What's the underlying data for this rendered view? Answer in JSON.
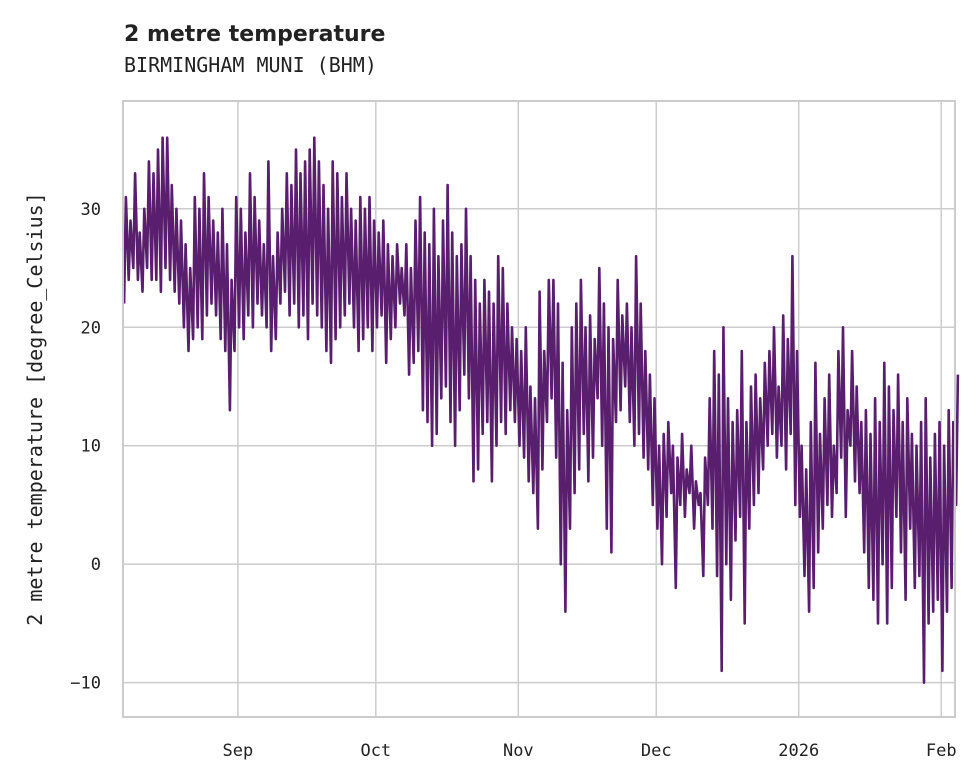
{
  "chart_data": {
    "type": "line",
    "title": "2 metre temperature",
    "subtitle": "BIRMINGHAM MUNI (BHM)",
    "xlabel": "",
    "ylabel": "2 metre temperature [degree_Celsius]",
    "ylim": [
      -12.9,
      39.1
    ],
    "xlim": [
      "2025-08-07",
      "2026-02-04"
    ],
    "grid": true,
    "line_color": "#5a1e6e",
    "yticks": [
      -10,
      0,
      10,
      20,
      30
    ],
    "xticks": [
      {
        "label": "Sep",
        "date": "2025-09-01"
      },
      {
        "label": "Oct",
        "date": "2025-10-01"
      },
      {
        "label": "Nov",
        "date": "2025-11-01"
      },
      {
        "label": "Dec",
        "date": "2025-12-01"
      },
      {
        "label": "2026",
        "date": "2026-01-01"
      },
      {
        "label": "Feb",
        "date": "2026-02-01"
      }
    ],
    "series_start": "2025-08-07",
    "series_note_fields": [
      "daily_max",
      "daily_min"
    ],
    "daily_hi_lo": [
      [
        31,
        22
      ],
      [
        29,
        24
      ],
      [
        33,
        25
      ],
      [
        28,
        24
      ],
      [
        30,
        23
      ],
      [
        34,
        25
      ],
      [
        33,
        24
      ],
      [
        35,
        24
      ],
      [
        36,
        23
      ],
      [
        36,
        25
      ],
      [
        32,
        24
      ],
      [
        30,
        23
      ],
      [
        29,
        22
      ],
      [
        27,
        20
      ],
      [
        25,
        18
      ],
      [
        31,
        19
      ],
      [
        30,
        20
      ],
      [
        33,
        19
      ],
      [
        31,
        21
      ],
      [
        29,
        22
      ],
      [
        28,
        21
      ],
      [
        30,
        19
      ],
      [
        27,
        18
      ],
      [
        24,
        13
      ],
      [
        31,
        18
      ],
      [
        30,
        20
      ],
      [
        28,
        19
      ],
      [
        33,
        21
      ],
      [
        31,
        20
      ],
      [
        29,
        22
      ],
      [
        27,
        21
      ],
      [
        34,
        20
      ],
      [
        26,
        18
      ],
      [
        28,
        19
      ],
      [
        30,
        22
      ],
      [
        33,
        23
      ],
      [
        32,
        21
      ],
      [
        35,
        22
      ],
      [
        33,
        20
      ],
      [
        34,
        21
      ],
      [
        35,
        19
      ],
      [
        36,
        22
      ],
      [
        34,
        21
      ],
      [
        32,
        20
      ],
      [
        30,
        18
      ],
      [
        34,
        17
      ],
      [
        33,
        19
      ],
      [
        31,
        20
      ],
      [
        33,
        21
      ],
      [
        30,
        22
      ],
      [
        29,
        20
      ],
      [
        31,
        18
      ],
      [
        30,
        19
      ],
      [
        31,
        20
      ],
      [
        29,
        18
      ],
      [
        28,
        20
      ],
      [
        29,
        21
      ],
      [
        27,
        17
      ],
      [
        26,
        19
      ],
      [
        27,
        20
      ],
      [
        25,
        22
      ],
      [
        27,
        21
      ],
      [
        25,
        16
      ],
      [
        29,
        17
      ],
      [
        31,
        18
      ],
      [
        28,
        13
      ],
      [
        27,
        12
      ],
      [
        30,
        10
      ],
      [
        26,
        11
      ],
      [
        29,
        14
      ],
      [
        32,
        15
      ],
      [
        28,
        12
      ],
      [
        26,
        10
      ],
      [
        27,
        13
      ],
      [
        30,
        16
      ],
      [
        26,
        14
      ],
      [
        24,
        7
      ],
      [
        22,
        8
      ],
      [
        24,
        11
      ],
      [
        23,
        12
      ],
      [
        22,
        7
      ],
      [
        26,
        10
      ],
      [
        25,
        12
      ],
      [
        22,
        11
      ],
      [
        20,
        13
      ],
      [
        19,
        12
      ],
      [
        18,
        10
      ],
      [
        20,
        9
      ],
      [
        15,
        7
      ],
      [
        14,
        6
      ],
      [
        23,
        3
      ],
      [
        18,
        8
      ],
      [
        24,
        12
      ],
      [
        24,
        14
      ],
      [
        22,
        9
      ],
      [
        17,
        0
      ],
      [
        13,
        -4
      ],
      [
        20,
        3
      ],
      [
        22,
        6
      ],
      [
        24,
        8
      ],
      [
        20,
        11
      ],
      [
        21,
        7
      ],
      [
        19,
        9
      ],
      [
        25,
        14
      ],
      [
        22,
        10
      ],
      [
        20,
        3
      ],
      [
        19,
        1
      ],
      [
        24,
        12
      ],
      [
        21,
        13
      ],
      [
        22,
        15
      ],
      [
        20,
        12
      ],
      [
        26,
        10
      ],
      [
        22,
        11
      ],
      [
        18,
        9
      ],
      [
        16,
        8
      ],
      [
        14,
        5
      ],
      [
        10,
        3
      ],
      [
        11,
        0
      ],
      [
        12,
        4
      ],
      [
        10,
        6
      ],
      [
        9,
        -2
      ],
      [
        11,
        5
      ],
      [
        8,
        4
      ],
      [
        10,
        6
      ],
      [
        7,
        3
      ],
      [
        6,
        5
      ],
      [
        9,
        -1
      ],
      [
        14,
        5
      ],
      [
        18,
        3
      ],
      [
        16,
        -1
      ],
      [
        20,
        -9
      ],
      [
        14,
        0
      ],
      [
        12,
        -3
      ],
      [
        13,
        2
      ],
      [
        18,
        4
      ],
      [
        12,
        -5
      ],
      [
        15,
        3
      ],
      [
        16,
        5
      ],
      [
        14,
        6
      ],
      [
        17,
        8
      ],
      [
        18,
        10
      ],
      [
        20,
        11
      ],
      [
        15,
        9
      ],
      [
        21,
        10
      ],
      [
        19,
        8
      ],
      [
        26,
        11
      ],
      [
        18,
        5
      ],
      [
        10,
        4
      ],
      [
        8,
        -1
      ],
      [
        12,
        -4
      ],
      [
        17,
        -2
      ],
      [
        11,
        1
      ],
      [
        14,
        3
      ],
      [
        16,
        5
      ],
      [
        10,
        4
      ],
      [
        18,
        6
      ],
      [
        20,
        9
      ],
      [
        13,
        4
      ],
      [
        18,
        10
      ],
      [
        15,
        7
      ],
      [
        12,
        6
      ],
      [
        13,
        1
      ],
      [
        11,
        -2
      ],
      [
        14,
        -3
      ],
      [
        12,
        -5
      ],
      [
        17,
        0
      ],
      [
        15,
        -5
      ],
      [
        13,
        -2
      ],
      [
        16,
        4
      ],
      [
        12,
        1
      ],
      [
        14,
        -3
      ],
      [
        11,
        3
      ],
      [
        10,
        -2
      ],
      [
        12,
        -1
      ],
      [
        14,
        -10
      ],
      [
        9,
        -5
      ],
      [
        11,
        -4
      ],
      [
        12,
        -3
      ],
      [
        10,
        -9
      ],
      [
        13,
        -4
      ],
      [
        12,
        -2
      ],
      [
        16,
        5
      ]
    ]
  }
}
